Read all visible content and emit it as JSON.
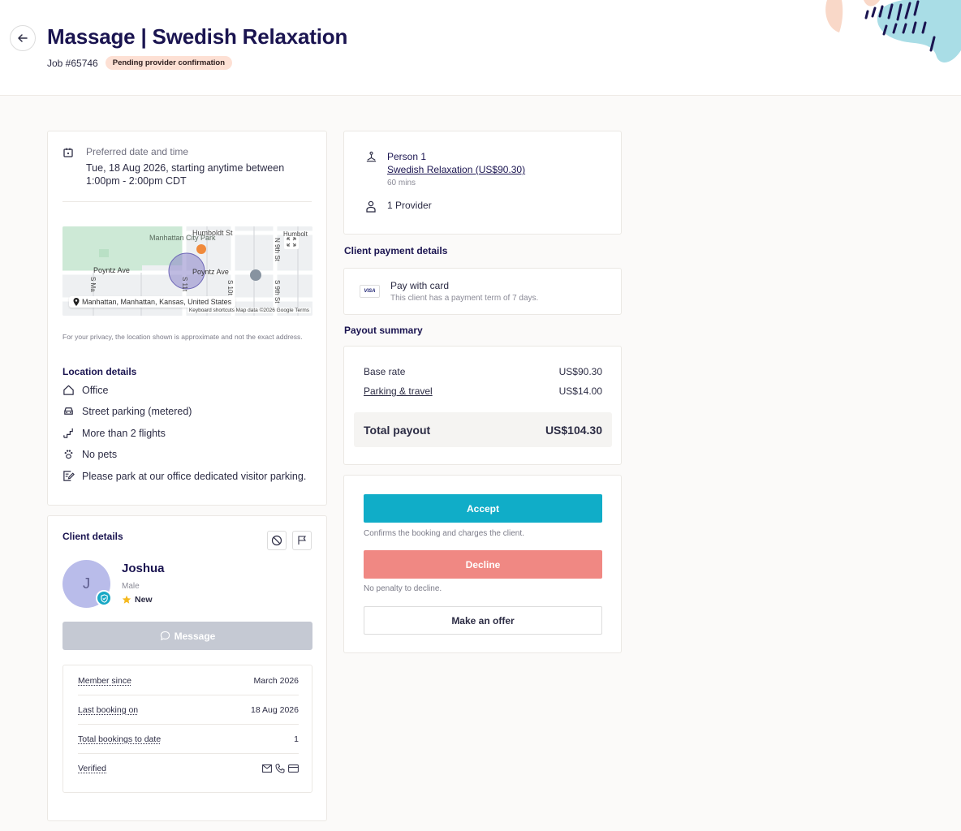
{
  "header": {
    "title": "Massage | Swedish Relaxation",
    "job_number": "Job #65746",
    "status_badge": "Pending provider confirmation"
  },
  "schedule": {
    "label": "Preferred date and time",
    "value": "Tue, 18 Aug 2026, starting anytime between 1:00pm - 2:00pm CDT"
  },
  "map": {
    "labels": {
      "park": "Manhattan City Park",
      "street_humboldt": "Humboldt St",
      "street_humbolt2": "Humbolt",
      "street_poyntz_w": "Poyntz Ave",
      "street_poyntz_e": "Poyntz Ave",
      "street_9th_n": "N 9th St",
      "street_9th_s": "S 9th St",
      "street_10th": "S 10t",
      "street_11th": "S 11t",
      "street_ma": "S Ma"
    },
    "address": "Manhattan, Manhattan, Kansas, United States",
    "footer": "Keyboard shortcuts   Map data ©2026 Google   Terms"
  },
  "privacy_note": "For your privacy, the location shown is approximate and not the exact address.",
  "location": {
    "title": "Location details",
    "items": [
      {
        "icon": "home-icon",
        "text": "Office"
      },
      {
        "icon": "car-icon",
        "text": "Street parking (metered)"
      },
      {
        "icon": "stairs-icon",
        "text": "More than 2 flights"
      },
      {
        "icon": "paw-icon",
        "text": "No pets"
      },
      {
        "icon": "note-icon",
        "text": "Please park at our office dedicated visitor parking."
      }
    ]
  },
  "client": {
    "title": "Client details",
    "initial": "J",
    "name": "Joshua",
    "gender": "Male",
    "status": "New",
    "message_label": "Message",
    "stats": [
      {
        "label": "Member since",
        "value": "March 2026"
      },
      {
        "label": "Last booking on",
        "value": "18 Aug 2026"
      },
      {
        "label": "Total bookings to date",
        "value": "1"
      },
      {
        "label": "Verified",
        "value": ""
      }
    ]
  },
  "booking": {
    "person": "Person 1",
    "service": "Swedish Relaxation (US$90.30)",
    "duration": "60 mins",
    "providers": "1 Provider"
  },
  "payment": {
    "title": "Client payment details",
    "card_brand": "VISA",
    "method": "Pay with card",
    "note": "This client has a payment term of 7 days."
  },
  "payout": {
    "title": "Payout summary",
    "base_label": "Base rate",
    "base_value": "US$90.30",
    "travel_label": "Parking & travel",
    "travel_value": "US$14.00",
    "total_label": "Total payout",
    "total_value": "US$104.30"
  },
  "actions": {
    "accept_label": "Accept",
    "accept_note": "Confirms the booking and charges the client.",
    "decline_label": "Decline",
    "decline_note": "No penalty to decline.",
    "offer_label": "Make an offer"
  },
  "colors": {
    "accent": "#10adc8",
    "decline": "#f08883",
    "title": "#1a1450",
    "badge_bg": "#fde0d4"
  }
}
